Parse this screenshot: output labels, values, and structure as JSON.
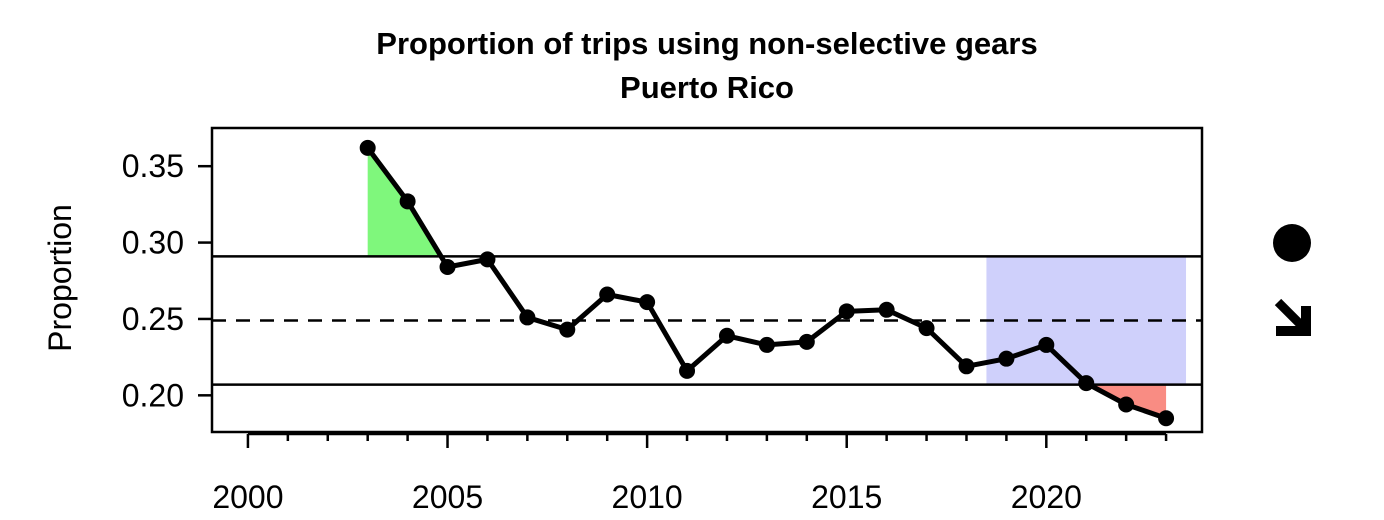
{
  "chart_data": {
    "type": "line",
    "title": "Proportion of trips using non-selective gears",
    "subtitle": "Puerto Rico",
    "xlabel": "",
    "ylabel": "Proportion",
    "xlim": [
      1999.1,
      2023.9
    ],
    "ylim": [
      0.176,
      0.375
    ],
    "x_ticks": [
      "2000",
      "2005",
      "2010",
      "2015",
      "2020"
    ],
    "y_ticks": [
      "0.20",
      "0.25",
      "0.30",
      "0.35"
    ],
    "grid": false,
    "series": [
      {
        "x": [
          2003,
          2004,
          2005,
          2006,
          2007,
          2008,
          2009,
          2010,
          2011,
          2012,
          2013,
          2014,
          2015,
          2016,
          2017,
          2018,
          2019,
          2020,
          2021,
          2022,
          2023
        ],
        "values": [
          0.362,
          0.327,
          0.284,
          0.289,
          0.251,
          0.243,
          0.266,
          0.261,
          0.216,
          0.239,
          0.233,
          0.235,
          0.255,
          0.256,
          0.244,
          0.219,
          0.224,
          0.233,
          0.208,
          0.194,
          0.185
        ],
        "color": "#000000"
      }
    ],
    "reference_lines": {
      "mean": 0.249,
      "upper": 0.291,
      "lower": 0.207,
      "mean_style": "dashed",
      "bounds_style": "solid"
    },
    "highlight_window": {
      "x_range": [
        2018.5,
        2023.5
      ],
      "color": "#cfd0fb"
    },
    "fill_above_upper_color": "#7ff77c",
    "fill_below_lower_color": "#f98c83",
    "trend_indicators": [
      {
        "name": "circle-icon",
        "meaning": "mean of last 5 years within 1 SD"
      },
      {
        "name": "arrow-down-right-icon",
        "meaning": "decreasing trend over last 5 years"
      }
    ]
  }
}
